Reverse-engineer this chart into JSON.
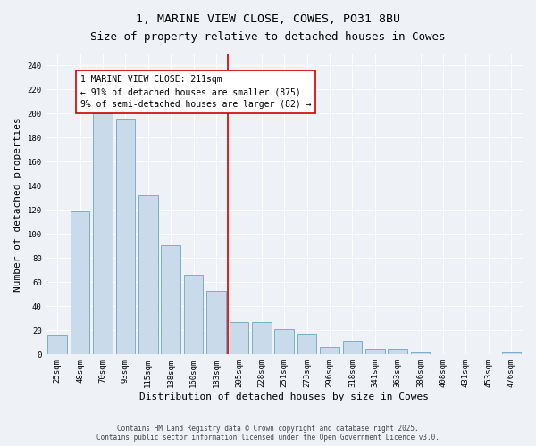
{
  "title": "1, MARINE VIEW CLOSE, COWES, PO31 8BU",
  "subtitle": "Size of property relative to detached houses in Cowes",
  "xlabel": "Distribution of detached houses by size in Cowes",
  "ylabel": "Number of detached properties",
  "categories": [
    "25sqm",
    "48sqm",
    "70sqm",
    "93sqm",
    "115sqm",
    "138sqm",
    "160sqm",
    "183sqm",
    "205sqm",
    "228sqm",
    "251sqm",
    "273sqm",
    "296sqm",
    "318sqm",
    "341sqm",
    "363sqm",
    "386sqm",
    "408sqm",
    "431sqm",
    "453sqm",
    "476sqm"
  ],
  "values": [
    16,
    119,
    200,
    196,
    132,
    91,
    66,
    53,
    27,
    27,
    21,
    17,
    6,
    11,
    5,
    5,
    2,
    0,
    0,
    0,
    2
  ],
  "bar_color": "#c9daea",
  "bar_edge_color": "#7aaec8",
  "vline_color": "#cc0000",
  "vline_index": 8,
  "annotation_text": "1 MARINE VIEW CLOSE: 211sqm\n← 91% of detached houses are smaller (875)\n9% of semi-detached houses are larger (82) →",
  "annotation_box_edgecolor": "#cc0000",
  "annotation_bg_color": "white",
  "ylim": [
    0,
    250
  ],
  "yticks": [
    0,
    20,
    40,
    60,
    80,
    100,
    120,
    140,
    160,
    180,
    200,
    220,
    240
  ],
  "background_color": "#eef2f7",
  "grid_color": "white",
  "footer": "Contains HM Land Registry data © Crown copyright and database right 2025.\nContains public sector information licensed under the Open Government Licence v3.0.",
  "title_fontsize": 9.5,
  "xlabel_fontsize": 8,
  "ylabel_fontsize": 8,
  "tick_fontsize": 6.5,
  "annotation_fontsize": 7,
  "footer_fontsize": 5.5
}
